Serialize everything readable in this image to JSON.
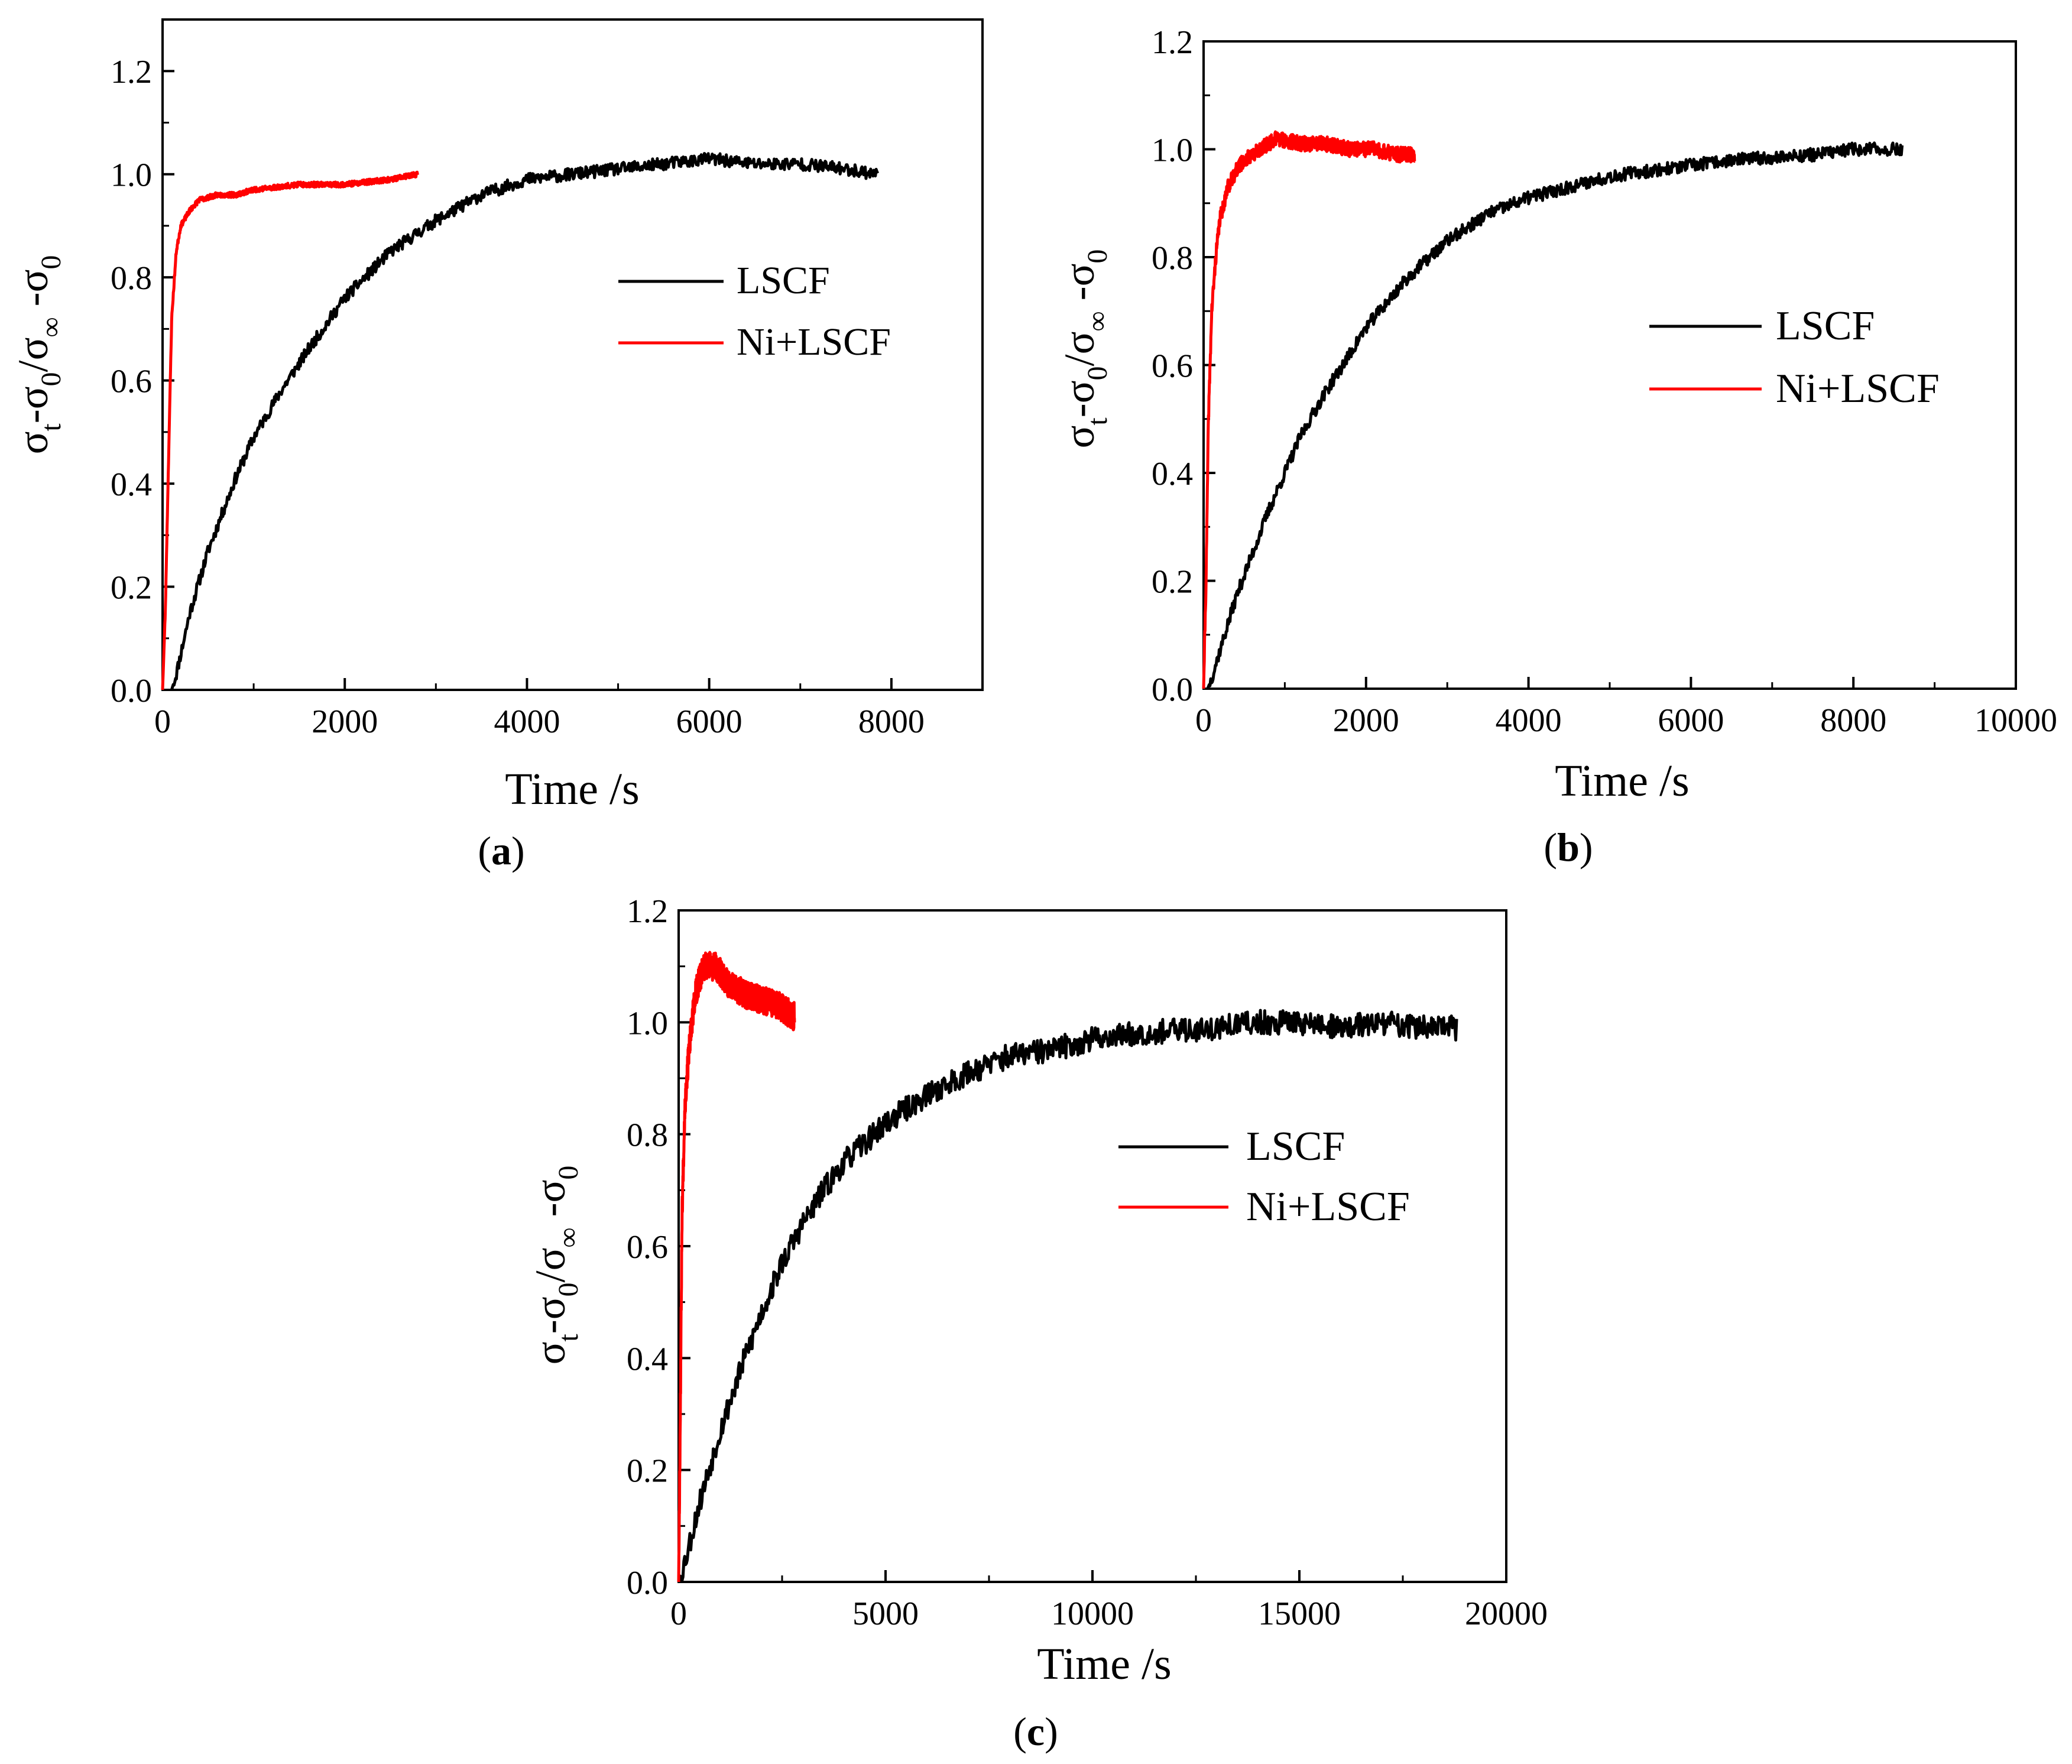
{
  "colors": {
    "lscf": "#000000",
    "ni_lscf": "#ff0000",
    "axis": "#000000"
  },
  "chart_data": [
    {
      "panel": "a",
      "type": "line",
      "caption_letter": "a",
      "xlabel": "Time /s",
      "ylabel": {
        "base": "σ",
        "sub_t": "t",
        "mid": "-σ",
        "sub_0": "0",
        "slash": "/σ",
        "sub_inf": "∞",
        "tail": " -σ",
        "sub_0b": "0"
      },
      "xlim": [
        0,
        9000
      ],
      "ylim": [
        0,
        1.3
      ],
      "xticks": [
        0,
        2000,
        4000,
        6000,
        8000
      ],
      "xtick_labels": [
        "0",
        "2000",
        "4000",
        "6000",
        "8000"
      ],
      "yticks": [
        0,
        0.2,
        0.4,
        0.6,
        0.8,
        1.0,
        1.2
      ],
      "ytick_labels": [
        "0.0",
        "0.2",
        "0.4",
        "0.6",
        "0.8",
        "1.0",
        "1.2"
      ],
      "legend": [
        "LSCF",
        "Ni+LSCF"
      ],
      "legend_position": "center-right",
      "series": [
        {
          "name": "LSCF",
          "color_key": "lscf",
          "noise": 0.012,
          "seed": 11,
          "x": [
            100,
            150,
            300,
            500,
            800,
            1000,
            1300,
            1600,
            2000,
            2500,
            3000,
            3500,
            4000,
            4500,
            5000,
            5500,
            6000,
            6500,
            7000,
            7500,
            7850
          ],
          "y": [
            0,
            0.03,
            0.15,
            0.27,
            0.41,
            0.49,
            0.58,
            0.66,
            0.76,
            0.85,
            0.91,
            0.96,
            0.99,
            1.0,
            1.01,
            1.02,
            1.03,
            1.02,
            1.02,
            1.01,
            1.0
          ]
        },
        {
          "name": "Ni+LSCF",
          "color_key": "ni_lscf",
          "noise": 0.005,
          "seed": 23,
          "x": [
            0,
            30,
            60,
            100,
            150,
            200,
            300,
            400,
            600,
            800,
            1000,
            1500,
            2000,
            2500,
            2800
          ],
          "y": [
            0,
            0.15,
            0.4,
            0.72,
            0.85,
            0.9,
            0.93,
            0.95,
            0.96,
            0.96,
            0.97,
            0.98,
            0.98,
            0.99,
            1.0
          ]
        }
      ]
    },
    {
      "panel": "b",
      "type": "line",
      "caption_letter": "b",
      "xlabel": "Time /s",
      "ylabel": {
        "base": "σ",
        "sub_t": "t",
        "mid": "-σ",
        "sub_0": "0",
        "slash": "/σ",
        "sub_inf": "∞",
        "tail": " -σ",
        "sub_0b": "0"
      },
      "xlim": [
        0,
        10000
      ],
      "ylim": [
        0,
        1.2
      ],
      "xticks": [
        0,
        2000,
        4000,
        6000,
        8000,
        10000
      ],
      "xtick_labels": [
        "0",
        "2000",
        "4000",
        "6000",
        "8000",
        "10000"
      ],
      "yticks": [
        0,
        0.2,
        0.4,
        0.6,
        0.8,
        1.0,
        1.2
      ],
      "ytick_labels": [
        "0.0",
        "0.2",
        "0.4",
        "0.6",
        "0.8",
        "1.0",
        "1.2"
      ],
      "legend": [
        "LSCF",
        "Ni+LSCF"
      ],
      "legend_position": "center-right",
      "series": [
        {
          "name": "LSCF",
          "color_key": "lscf",
          "noise": 0.012,
          "seed": 37,
          "x": [
            50,
            100,
            200,
            400,
            600,
            800,
            1000,
            1200,
            1500,
            1800,
            2000,
            2500,
            3000,
            3500,
            4000,
            4500,
            5000,
            5500,
            6000,
            6500,
            7000,
            7500,
            8000,
            8600
          ],
          "y": [
            0,
            0.02,
            0.07,
            0.17,
            0.25,
            0.33,
            0.4,
            0.47,
            0.55,
            0.62,
            0.67,
            0.76,
            0.83,
            0.88,
            0.91,
            0.93,
            0.95,
            0.96,
            0.97,
            0.98,
            0.985,
            0.99,
            1.0,
            1.0
          ]
        },
        {
          "name": "Ni+LSCF",
          "color_key": "ni_lscf",
          "noise": 0.014,
          "seed": 41,
          "x": [
            0,
            30,
            60,
            100,
            150,
            200,
            300,
            400,
            500,
            700,
            900,
            1200,
            1500,
            1800,
            2100,
            2400,
            2600
          ],
          "y": [
            0,
            0.2,
            0.5,
            0.7,
            0.8,
            0.87,
            0.93,
            0.96,
            0.98,
            1.0,
            1.02,
            1.01,
            1.01,
            1.0,
            1.0,
            0.99,
            0.99
          ]
        }
      ]
    },
    {
      "panel": "c",
      "type": "line",
      "caption_letter": "c",
      "xlabel": "Time /s",
      "ylabel": {
        "base": "σ",
        "sub_t": "t",
        "mid": "-σ",
        "sub_0": "0",
        "slash": "/σ",
        "sub_inf": "∞",
        "tail": " -σ",
        "sub_0b": "0"
      },
      "xlim": [
        0,
        20000
      ],
      "ylim": [
        0,
        1.2
      ],
      "xticks": [
        0,
        5000,
        10000,
        15000,
        20000
      ],
      "xtick_labels": [
        "0",
        "5000",
        "10000",
        "15000",
        "20000"
      ],
      "yticks": [
        0,
        0.2,
        0.4,
        0.6,
        0.8,
        1.0,
        1.2
      ],
      "ytick_labels": [
        "0.0",
        "0.2",
        "0.4",
        "0.6",
        "0.8",
        "1.0",
        "1.2"
      ],
      "legend": [
        "LSCF",
        "Ni+LSCF"
      ],
      "legend_position": "center-right",
      "series": [
        {
          "name": "LSCF",
          "color_key": "lscf",
          "noise": 0.022,
          "seed": 53,
          "x": [
            0,
            200,
            500,
            1000,
            1500,
            2000,
            2500,
            3000,
            3500,
            4000,
            5000,
            6000,
            7000,
            8000,
            9000,
            10000,
            11000,
            12000,
            13000,
            14000,
            15000,
            16000,
            17000,
            18000,
            18800
          ],
          "y": [
            0,
            0.05,
            0.14,
            0.27,
            0.38,
            0.48,
            0.57,
            0.64,
            0.7,
            0.75,
            0.82,
            0.87,
            0.91,
            0.94,
            0.95,
            0.97,
            0.98,
            0.985,
            0.99,
            1.0,
            1.0,
            0.99,
            1.0,
            0.99,
            0.99
          ]
        },
        {
          "name": "Ni+LSCF",
          "color_key": "ni_lscf",
          "noise": 0.025,
          "seed": 67,
          "x": [
            0,
            40,
            80,
            150,
            250,
            400,
            600,
            900,
            1200,
            1600,
            2000,
            2400,
            2800
          ],
          "y": [
            0,
            0.3,
            0.65,
            0.85,
            0.95,
            1.05,
            1.1,
            1.1,
            1.07,
            1.05,
            1.04,
            1.03,
            1.01
          ]
        }
      ]
    }
  ]
}
